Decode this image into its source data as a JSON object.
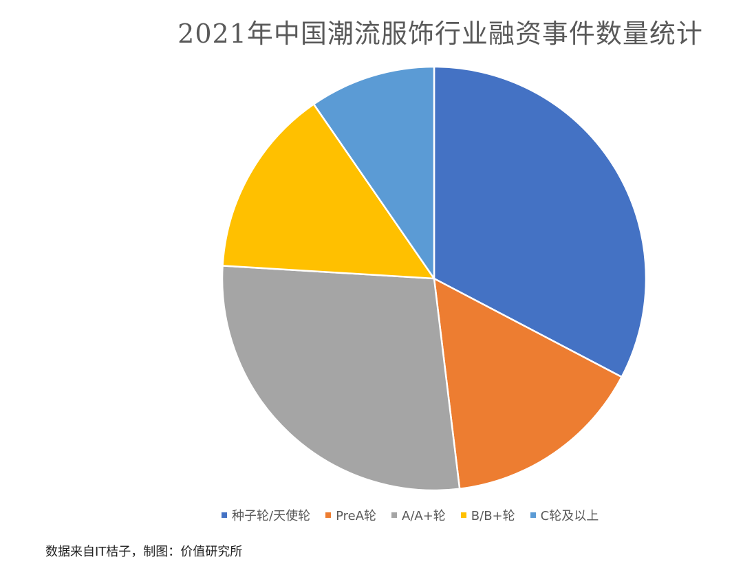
{
  "chart_data": {
    "type": "pie",
    "title": "2021年中国潮流服饰行业融资事件数量统计",
    "categories": [
      "种子轮/天使轮",
      "PreA轮",
      "A/A+轮",
      "B/B+轮",
      "C轮及以上"
    ],
    "values": [
      34,
      16,
      29,
      15,
      10
    ],
    "colors": [
      "#4472C4",
      "#ED7D31",
      "#A5A5A5",
      "#FFC000",
      "#5B9BD5"
    ],
    "legend_position": "bottom",
    "start_angle_deg": 0,
    "direction": "clockwise"
  },
  "footer": {
    "source": "数据来自IT桔子，制图：价值研究所"
  }
}
